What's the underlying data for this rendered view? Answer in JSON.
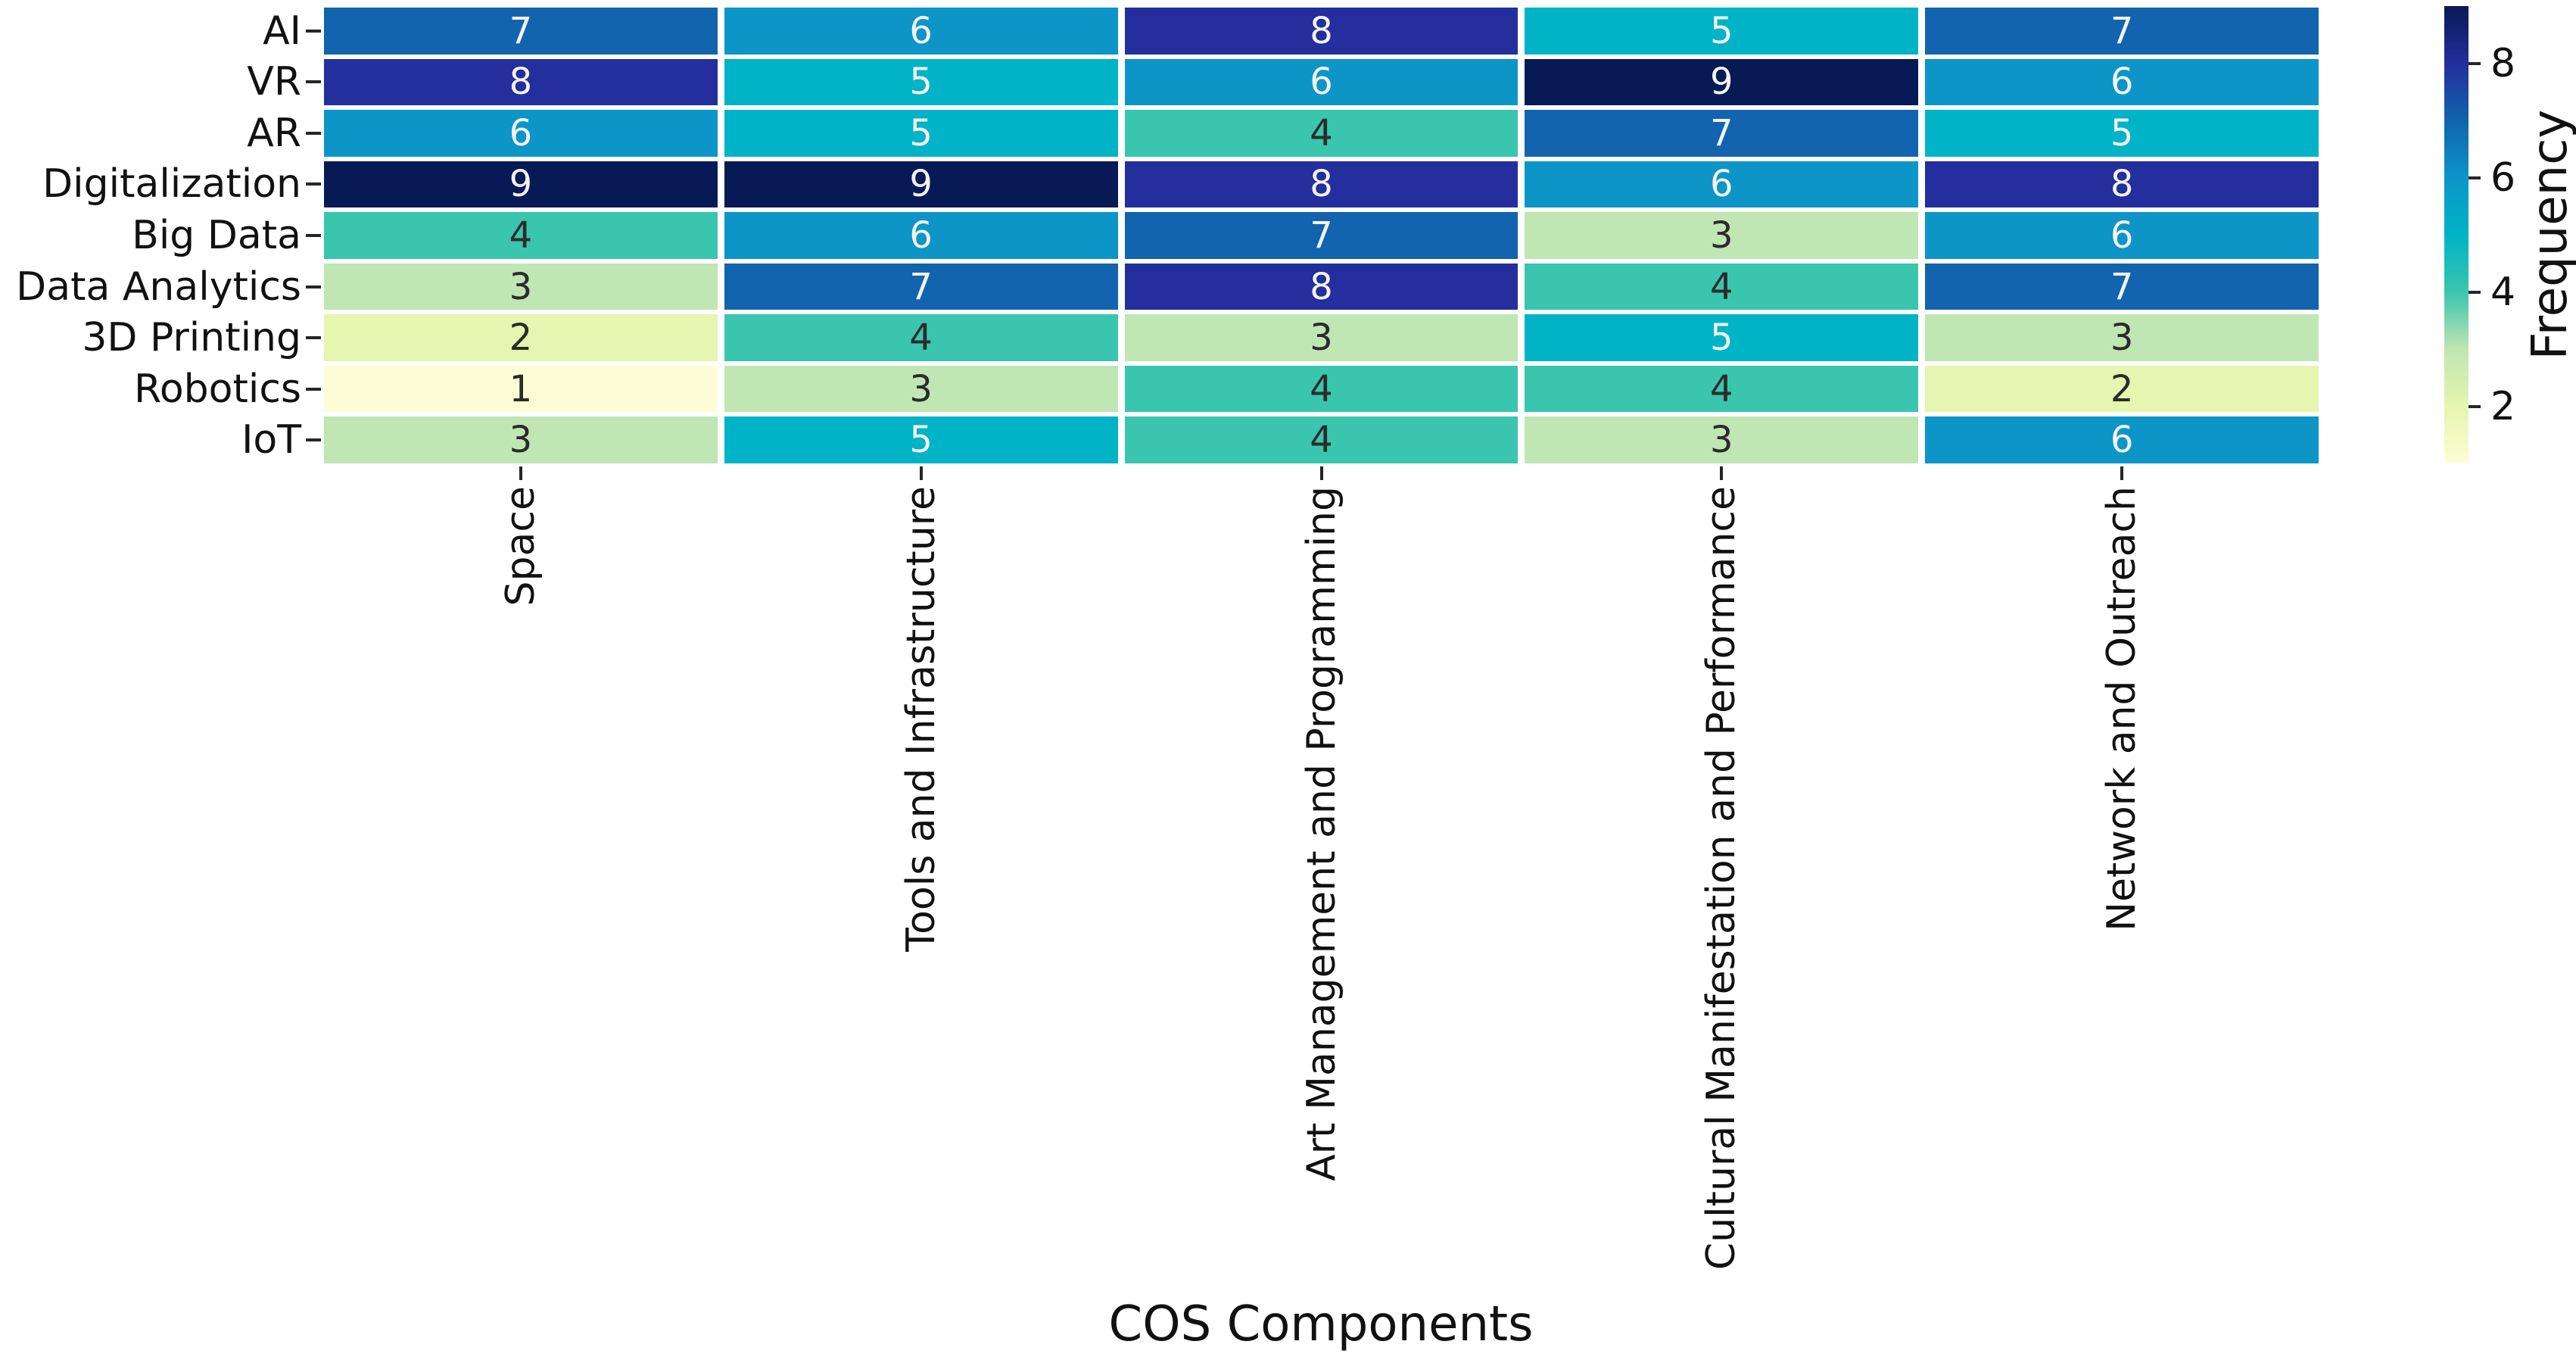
{
  "chart_data": {
    "type": "heatmap",
    "xlabel": "COS Components",
    "colorbar_label": "Frequency",
    "rows": [
      "AI",
      "VR",
      "AR",
      "Digitalization",
      "Big Data",
      "Data Analytics",
      "3D Printing",
      "Robotics",
      "IoT"
    ],
    "columns": [
      "Space",
      "Tools and Infrastructure",
      "Art Management and Programming",
      "Cultural Manifestation and Performance",
      "Network and Outreach"
    ],
    "values": [
      [
        7,
        6,
        8,
        5,
        7
      ],
      [
        8,
        5,
        6,
        9,
        6
      ],
      [
        6,
        5,
        4,
        7,
        5
      ],
      [
        9,
        9,
        8,
        6,
        8
      ],
      [
        4,
        6,
        7,
        3,
        6
      ],
      [
        3,
        7,
        8,
        4,
        7
      ],
      [
        2,
        4,
        3,
        5,
        3
      ],
      [
        1,
        3,
        4,
        4,
        2
      ],
      [
        3,
        5,
        4,
        3,
        6
      ]
    ],
    "vmin": 1,
    "vmax": 9,
    "colorbar_ticks": [
      2,
      4,
      6,
      8
    ],
    "colormap": "YlGnBu",
    "palette": {
      "1": "#fcfdd4",
      "2": "#e6f5af",
      "3": "#bfe6b3",
      "4": "#3ac5ae",
      "5": "#00b3c6",
      "6": "#0d95c8",
      "7": "#1164ad",
      "8": "#242e9d",
      "9": "#081a55"
    },
    "annotation_text_dark": "#2b2b2b",
    "annotation_text_light": "#f2f4ef",
    "light_text_threshold": 5
  }
}
